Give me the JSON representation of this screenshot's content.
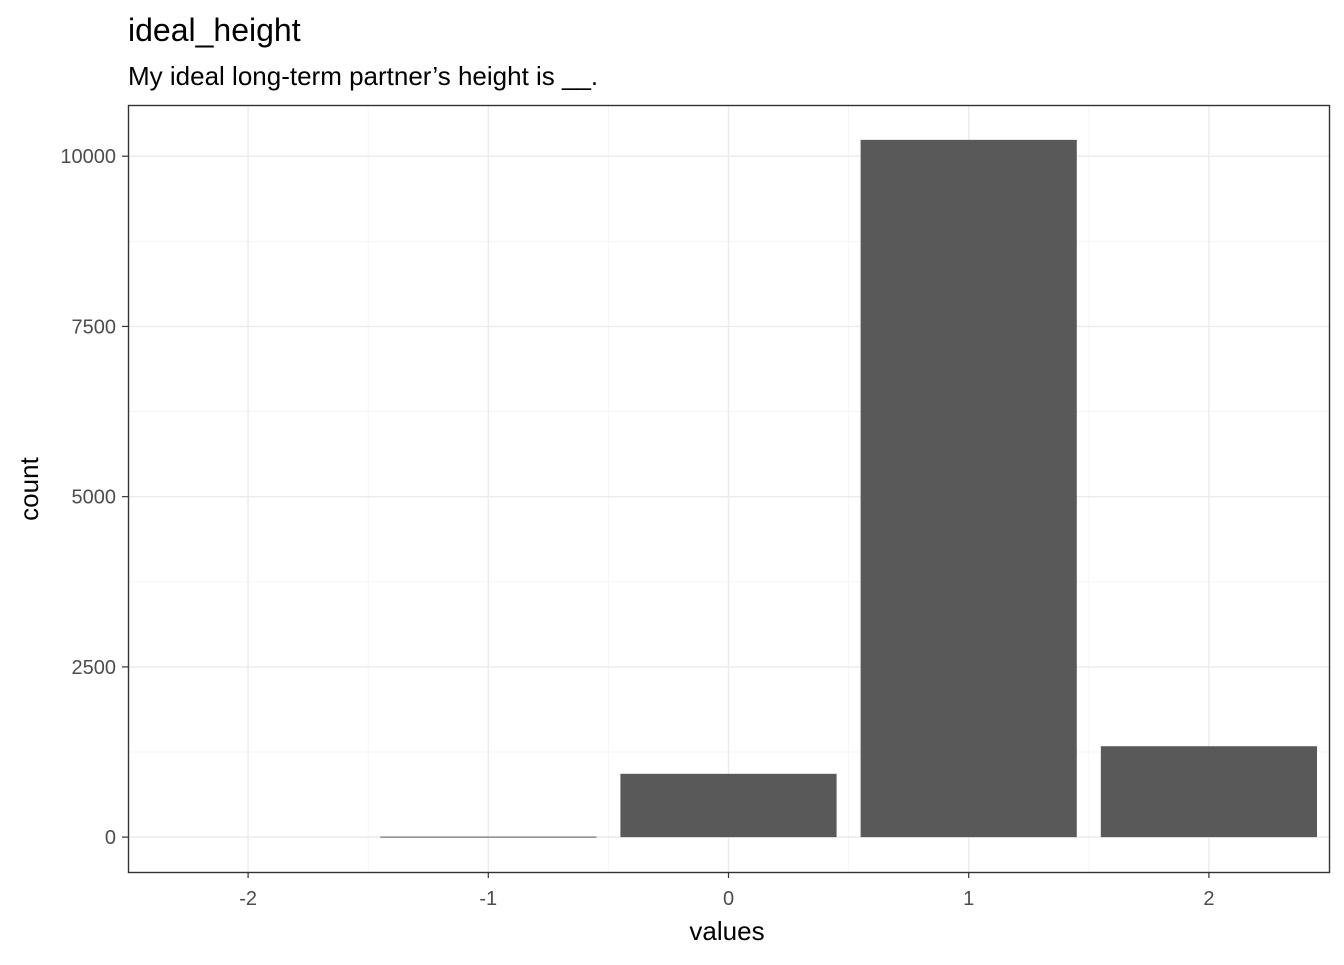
{
  "chart_data": {
    "type": "bar",
    "title": "ideal_height",
    "subtitle": "My ideal long-term partner’s height is __.",
    "xlabel": "values",
    "ylabel": "count",
    "categories": [
      -2,
      -1,
      0,
      1,
      2
    ],
    "values": [
      0,
      8,
      930,
      10240,
      1335
    ],
    "x_tick_labels": [
      "-2",
      "-1",
      "0",
      "1",
      "2"
    ],
    "y_ticks": [
      0,
      2500,
      5000,
      7500,
      10000
    ],
    "y_tick_labels": [
      "0",
      "2500",
      "5000",
      "7500",
      "10000"
    ],
    "xlim": [
      -2.5,
      2.5
    ],
    "ylim": [
      -512,
      10752
    ],
    "grid": true,
    "bar_color": "#595959",
    "theme": "bw"
  }
}
